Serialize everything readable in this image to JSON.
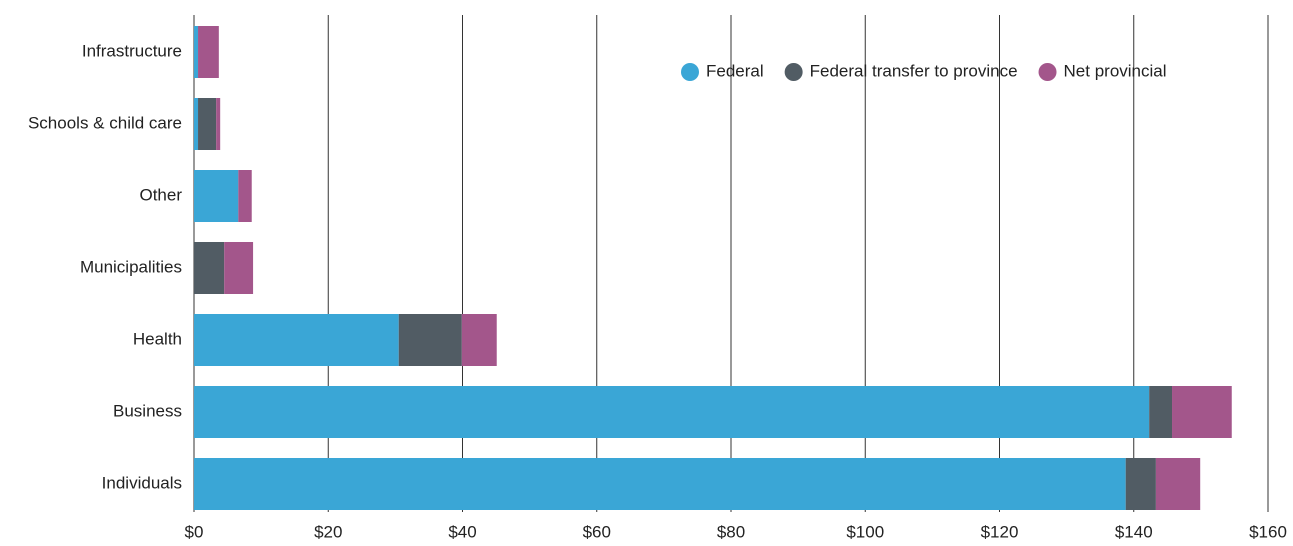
{
  "chart_data": {
    "type": "hbar_stacked",
    "categories": [
      "Infrastructure",
      "Schools & child care",
      "Other",
      "Municipalities",
      "Health",
      "Business",
      "Individuals"
    ],
    "series": [
      {
        "name": "Federal",
        "color": "#3aa6d6",
        "values": [
          0.6,
          0.6,
          6.6,
          0,
          30.5,
          142.3,
          138.8
        ]
      },
      {
        "name": "Federal transfer to province",
        "color": "#515c64",
        "values": [
          0,
          2.7,
          0,
          4.5,
          9.4,
          3.4,
          4.5
        ]
      },
      {
        "name": "Net provincial",
        "color": "#a3568b",
        "values": [
          3.1,
          0.6,
          2.0,
          4.3,
          5.2,
          8.9,
          6.6
        ]
      }
    ],
    "xlim": [
      0,
      160
    ],
    "xticks": [
      {
        "value": 0,
        "label": "$0"
      },
      {
        "value": 20,
        "label": "$20"
      },
      {
        "value": 40,
        "label": "$40"
      },
      {
        "value": 60,
        "label": "$60"
      },
      {
        "value": 80,
        "label": "$80"
      },
      {
        "value": 100,
        "label": "$100"
      },
      {
        "value": 120,
        "label": "$120"
      },
      {
        "value": 140,
        "label": "$140"
      },
      {
        "value": 160,
        "label": "$160"
      }
    ],
    "grid": true,
    "legend": "top-right"
  }
}
